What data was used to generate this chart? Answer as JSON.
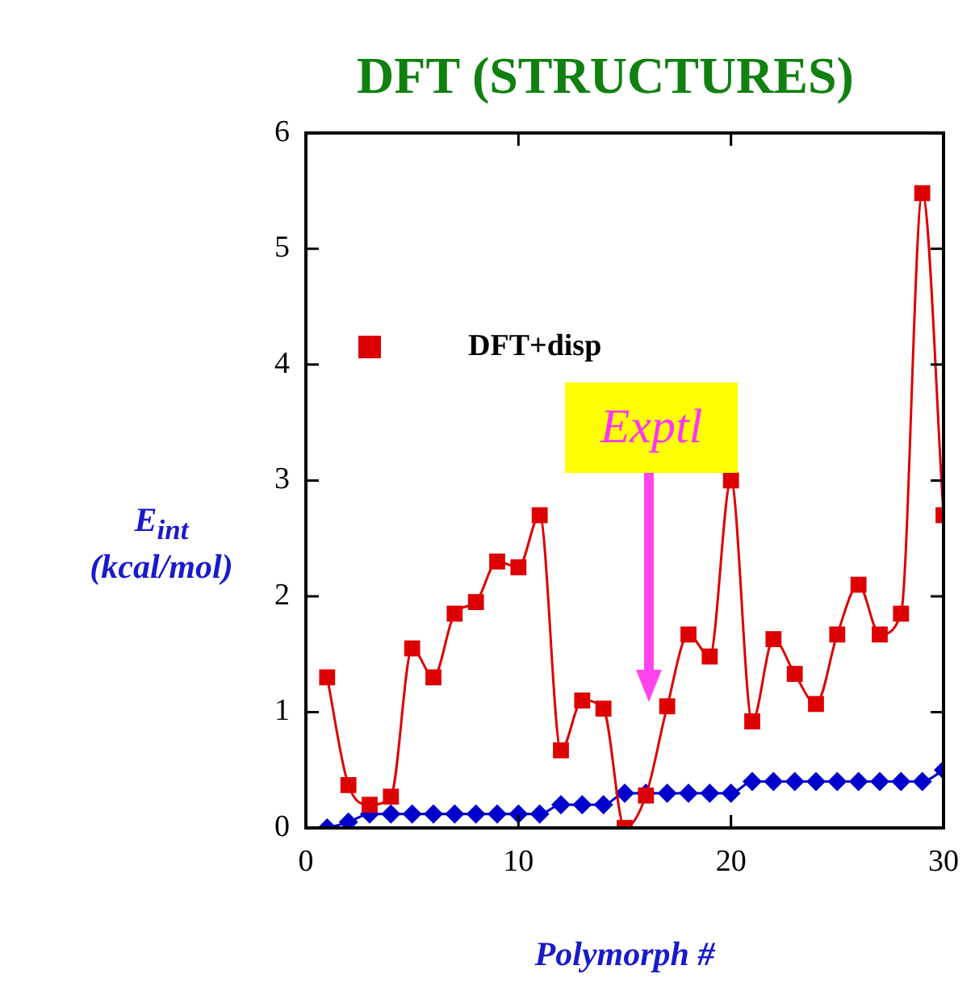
{
  "chart_data": {
    "type": "line",
    "title": "DFT (STRUCTURES)",
    "xlabel": "Polymorph #",
    "ylabel": "E$_{int}$ (kcal/mol)",
    "x": [
      1,
      2,
      3,
      4,
      5,
      6,
      7,
      8,
      9,
      10,
      11,
      12,
      13,
      14,
      15,
      16,
      17,
      18,
      19,
      20,
      21,
      22,
      23,
      24,
      25,
      26,
      27,
      28,
      29,
      30
    ],
    "series": [
      {
        "color": "#0000cc",
        "marker": "diamond",
        "values": [
          0.0,
          0.05,
          0.12,
          0.12,
          0.12,
          0.12,
          0.12,
          0.12,
          0.12,
          0.12,
          0.12,
          0.2,
          0.2,
          0.2,
          0.3,
          0.3,
          0.3,
          0.3,
          0.3,
          0.3,
          0.4,
          0.4,
          0.4,
          0.4,
          0.4,
          0.4,
          0.4,
          0.4,
          0.4,
          0.5
        ]
      },
      {
        "name": "DFT+disp",
        "color": "#dd0000",
        "marker": "square",
        "values": [
          1.3,
          0.37,
          0.2,
          0.27,
          1.55,
          1.3,
          1.85,
          1.95,
          2.3,
          2.25,
          2.7,
          0.67,
          1.1,
          1.03,
          0.0,
          0.28,
          1.05,
          1.67,
          1.48,
          3.0,
          0.92,
          1.63,
          1.33,
          1.07,
          1.67,
          2.1,
          1.67,
          1.85,
          5.48,
          2.7
        ]
      }
    ],
    "xlim": [
      0,
      30
    ],
    "xticks": [
      0,
      10,
      20,
      30
    ],
    "ylim": [
      0,
      6
    ],
    "yticks": [
      0,
      1,
      2,
      3,
      4,
      5,
      6
    ],
    "grid": false,
    "legend": "top left",
    "line_style": "solid",
    "annotations": [
      "Exptl"
    ]
  }
}
